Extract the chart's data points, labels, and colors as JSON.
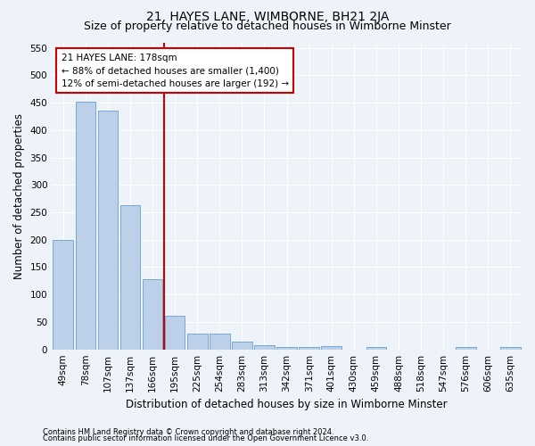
{
  "title": "21, HAYES LANE, WIMBORNE, BH21 2JA",
  "subtitle": "Size of property relative to detached houses in Wimborne Minster",
  "xlabel": "Distribution of detached houses by size in Wimborne Minster",
  "ylabel": "Number of detached properties",
  "footnote1": "Contains HM Land Registry data © Crown copyright and database right 2024.",
  "footnote2": "Contains public sector information licensed under the Open Government Licence v3.0.",
  "bar_labels": [
    "49sqm",
    "78sqm",
    "107sqm",
    "137sqm",
    "166sqm",
    "195sqm",
    "225sqm",
    "254sqm",
    "283sqm",
    "313sqm",
    "342sqm",
    "371sqm",
    "401sqm",
    "430sqm",
    "459sqm",
    "488sqm",
    "518sqm",
    "547sqm",
    "576sqm",
    "606sqm",
    "635sqm"
  ],
  "bar_values": [
    199,
    451,
    435,
    263,
    128,
    62,
    28,
    28,
    14,
    8,
    5,
    5,
    6,
    0,
    5,
    0,
    0,
    0,
    5,
    0,
    5
  ],
  "bar_color": "#bdd0e9",
  "bar_edge_color": "#6a9fd0",
  "vline_x_index": 4,
  "vline_color": "#cc0000",
  "annotation_line1": "21 HAYES LANE: 178sqm",
  "annotation_line2": "← 88% of detached houses are smaller (1,400)",
  "annotation_line3": "12% of semi-detached houses are larger (192) →",
  "annotation_box_color": "#cc0000",
  "ylim": [
    0,
    560
  ],
  "yticks": [
    0,
    50,
    100,
    150,
    200,
    250,
    300,
    350,
    400,
    450,
    500,
    550
  ],
  "background_color": "#eef2f9",
  "plot_background": "#eef2f9",
  "grid_color": "#ffffff",
  "title_fontsize": 10,
  "subtitle_fontsize": 9,
  "tick_fontsize": 7.5,
  "ylabel_fontsize": 8.5,
  "xlabel_fontsize": 8.5,
  "annotation_fontsize": 7.5,
  "footnote_fontsize": 6
}
